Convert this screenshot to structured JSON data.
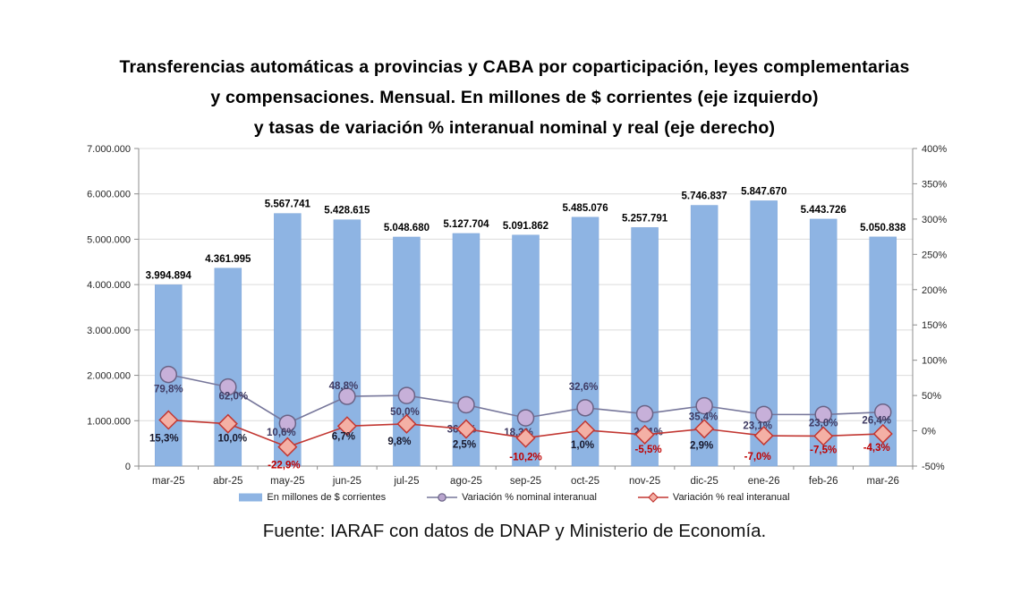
{
  "chart_data": {
    "type": "bar+line combo",
    "title_lines": [
      "Transferencias  automáticas  a provincias  y CABA  por coparticipación,  leyes complementarias",
      "y compensaciones.  Mensual.  En  millones de $ corrientes  (eje izquierdo)",
      "y tasas de variación  % interanual  nominal  y real (eje derecho)"
    ],
    "categories": [
      "mar-25",
      "abr-25",
      "may-25",
      "jun-25",
      "jul-25",
      "ago-25",
      "sep-25",
      "oct-25",
      "nov-25",
      "dic-25",
      "ene-26",
      "feb-26",
      "mar-26"
    ],
    "bar_series": {
      "name": "En millones de $ corrientes",
      "color": "#8EB4E3",
      "values": [
        3994894,
        4361995,
        5567741,
        5428615,
        5048680,
        5127704,
        5091862,
        5485076,
        5257791,
        5746837,
        5847670,
        5443726,
        5050838
      ],
      "labels": [
        "3.994.894",
        "4.361.995",
        "5.567.741",
        "5.428.615",
        "5.048.680",
        "5.127.704",
        "5.091.862",
        "5.485.076",
        "5.257.791",
        "5.746.837",
        "5.847.670",
        "5.443.726",
        "5.050.838"
      ]
    },
    "line_series": [
      {
        "name": "Variación % nominal interanual",
        "marker": "circle",
        "line_color": "#76769A",
        "marker_fill": "#C7B0D9",
        "marker_stroke": "#6A6386",
        "label_color": "#3F3B63",
        "values": [
          79.8,
          62.0,
          10.6,
          48.8,
          50.0,
          36.9,
          18.3,
          32.6,
          24.1,
          35.4,
          23.1,
          23.0,
          26.4
        ],
        "labels": [
          "79,8%",
          "62,0%",
          "10,6%",
          "48,8%",
          "50,0%",
          "36,9%",
          "18,3%",
          "32,6%",
          "24,1%",
          "35,4%",
          "23,1%",
          "23,0%",
          "26,4%"
        ]
      },
      {
        "name": "Variación % real interanual",
        "marker": "diamond",
        "line_color": "#C23732",
        "marker_fill": "#F4B0A5",
        "marker_stroke": "#C23732",
        "label_color_positive": "#17172B",
        "label_color_negative": "#C00000",
        "values": [
          15.3,
          10.0,
          -22.9,
          6.7,
          9.8,
          2.5,
          -10.2,
          1.0,
          -5.5,
          2.9,
          -7.0,
          -7.5,
          -4.3
        ],
        "labels": [
          "15,3%",
          "10,0%",
          "-22,9%",
          "6,7%",
          "9,8%",
          "2,5%",
          "-10,2%",
          "1,0%",
          "-5,5%",
          "2,9%",
          "-7,0%",
          "-7,5%",
          "-4,3%"
        ]
      }
    ],
    "left_axis": {
      "min": 0,
      "max": 7000000,
      "tick_labels": [
        "0",
        "1.000.000",
        "2.000.000",
        "3.000.000",
        "4.000.000",
        "5.000.000",
        "6.000.000",
        "7.000.000"
      ]
    },
    "right_axis": {
      "min": -50,
      "max": 400,
      "tick_labels": [
        "-50%",
        "0%",
        "50%",
        "100%",
        "150%",
        "200%",
        "250%",
        "300%",
        "350%",
        "400%"
      ]
    },
    "grid": "horizontal, light gray",
    "legend_position": "bottom",
    "source": "Fuente: IARAF con datos de DNAP y Ministerio de Economía."
  }
}
